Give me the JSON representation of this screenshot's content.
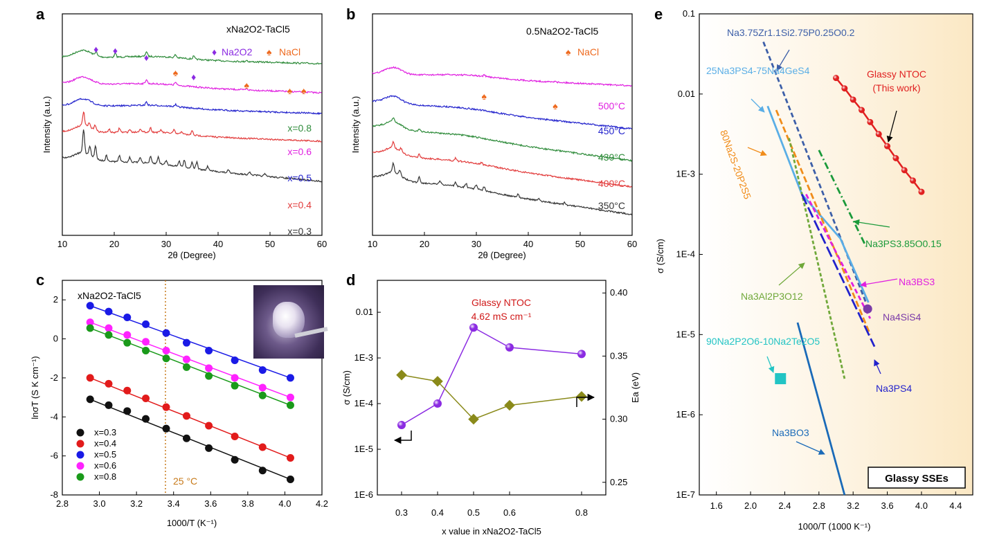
{
  "panels": {
    "a": "a",
    "b": "b",
    "c": "c",
    "d": "d",
    "e": "e"
  },
  "chart_data": [
    {
      "id": "a",
      "type": "line",
      "xlabel": "2θ (Degree)",
      "ylabel": "Intensity (a.u.)",
      "xlim": [
        10,
        60
      ],
      "xticks": [
        "10",
        "20",
        "30",
        "40",
        "50",
        "60"
      ],
      "title": "xNa2O2-TaCl5",
      "legend": [
        {
          "name": "Na2O2",
          "color": "#8b2be2"
        },
        {
          "name": "NaCl",
          "color": "#ee6a1f"
        }
      ],
      "series": [
        {
          "name": "x=0.8",
          "color": "#2e8b3a"
        },
        {
          "name": "x=0.6",
          "color": "#e020e0"
        },
        {
          "name": "x=0.5",
          "color": "#2222cc"
        },
        {
          "name": "x=0.4",
          "color": "#e23b3b"
        },
        {
          "name": "x=0.3",
          "color": "#333333"
        }
      ],
      "markers_na2o2": [
        16.5,
        20.2,
        26.2,
        35.3
      ],
      "markers_nacl": [
        31.8,
        45.5,
        53.8,
        56.5
      ]
    },
    {
      "id": "b",
      "type": "line",
      "xlabel": "2θ (Degree)",
      "ylabel": "Intensity (a.u.)",
      "xlim": [
        10,
        60
      ],
      "xticks": [
        "10",
        "20",
        "30",
        "40",
        "50",
        "60"
      ],
      "title": "0.5Na2O2-TaCl5",
      "legend": [
        {
          "name": "NaCl",
          "color": "#ee6a1f"
        }
      ],
      "series": [
        {
          "name": "500°C",
          "color": "#e020e0"
        },
        {
          "name": "450°C",
          "color": "#2222cc"
        },
        {
          "name": "430°C",
          "color": "#2e8b3a"
        },
        {
          "name": "400°C",
          "color": "#e23b3b"
        },
        {
          "name": "350°C",
          "color": "#333333"
        }
      ],
      "markers_nacl": [
        31.5,
        45.2
      ]
    },
    {
      "id": "c",
      "type": "scatter",
      "xlabel": "1000/T (K⁻¹)",
      "ylabel": "lnσT (S K cm⁻¹)",
      "xlim": [
        2.8,
        4.2
      ],
      "ylim": [
        -8,
        3
      ],
      "xticks": [
        "2.8",
        "3.0",
        "3.2",
        "3.4",
        "3.6",
        "3.8",
        "4.0",
        "4.2"
      ],
      "yticks": [
        "-8",
        "-6",
        "-4",
        "-2",
        "0",
        "2"
      ],
      "title": "xNa2O2-TaCl5",
      "annotation": "25 °C",
      "vline_x": 3.356,
      "x": [
        2.95,
        3.05,
        3.15,
        3.25,
        3.36,
        3.47,
        3.59,
        3.73,
        3.88,
        4.03
      ],
      "series": [
        {
          "name": "x=0.3",
          "color": "#111111",
          "y": [
            -3.1,
            -3.4,
            -3.7,
            -4.1,
            -4.6,
            -5.1,
            -5.6,
            -6.2,
            -6.75,
            -7.2
          ]
        },
        {
          "name": "x=0.4",
          "color": "#e21b1b",
          "y": [
            -2.0,
            -2.3,
            -2.65,
            -3.05,
            -3.5,
            -3.95,
            -4.45,
            -5.0,
            -5.55,
            -6.1
          ]
        },
        {
          "name": "x=0.5",
          "color": "#1a1ae6",
          "y": [
            1.7,
            1.4,
            1.1,
            0.75,
            0.3,
            -0.2,
            -0.6,
            -1.1,
            -1.6,
            -2.0
          ]
        },
        {
          "name": "x=0.6",
          "color": "#ff22ff",
          "y": [
            0.85,
            0.55,
            0.2,
            -0.15,
            -0.6,
            -1.05,
            -1.5,
            -2.0,
            -2.5,
            -3.0
          ]
        },
        {
          "name": "x=0.8",
          "color": "#1a9a1a",
          "y": [
            0.55,
            0.2,
            -0.2,
            -0.6,
            -1.0,
            -1.45,
            -1.9,
            -2.4,
            -2.9,
            -3.4
          ]
        }
      ]
    },
    {
      "id": "d",
      "type": "line",
      "xlabel": "x value in xNa2O2-TaCl5",
      "ylabel": "σ (S/cm)",
      "ylabel_right": "Ea (eV)",
      "xticks": [
        "0.3",
        "0.4",
        "0.5",
        "0.6",
        "0.8"
      ],
      "x": [
        0.3,
        0.4,
        0.5,
        0.6,
        0.8
      ],
      "yticks_left": [
        "1E-6",
        "1E-5",
        "1E-4",
        "1E-3",
        "0.01"
      ],
      "yticks_right": [
        "0.25",
        "0.30",
        "0.35",
        "0.40"
      ],
      "ylim_left": [
        1e-06,
        0.05
      ],
      "ylim_right": [
        0.24,
        0.41
      ],
      "annotation": [
        "Glassy NTOC",
        "4.62 mS cm⁻¹"
      ],
      "series": [
        {
          "name": "σ",
          "color": "#8b2be2",
          "axis": "left",
          "y": [
            3.4e-05,
            0.0001,
            0.00462,
            0.0017,
            0.00122
          ]
        },
        {
          "name": "Ea",
          "color": "#8a8a1a",
          "axis": "right",
          "y": [
            0.335,
            0.33,
            0.3,
            0.311,
            0.318
          ]
        }
      ]
    },
    {
      "id": "e",
      "type": "line",
      "xlabel": "1000/T (1000 K⁻¹)",
      "ylabel": "σ (S/cm)",
      "xlim": [
        1.4,
        4.6
      ],
      "ylim_log": [
        -7,
        -1
      ],
      "xticks": [
        "1.6",
        "2.0",
        "2.4",
        "2.8",
        "3.2",
        "3.6",
        "4.0",
        "4.4"
      ],
      "yticks": [
        "1E-7",
        "1E-6",
        "1E-5",
        "1E-4",
        "1E-3",
        "0.01",
        "0.1"
      ],
      "legend_box": "Glassy SSEs",
      "series": [
        {
          "name": "Glassy NTOC (This work)",
          "label": [
            "Glassy NTOC",
            "(This work)"
          ],
          "color": "#e02020",
          "x": [
            3.0,
            3.1,
            3.2,
            3.3,
            3.4,
            3.5,
            3.6,
            3.7,
            3.8,
            3.9,
            4.0
          ],
          "y": [
            -1.8,
            -1.93,
            -2.07,
            -2.2,
            -2.35,
            -2.5,
            -2.65,
            -2.8,
            -2.95,
            -3.08,
            -3.22
          ]
        },
        {
          "name": "Na3.75Zr1.1Si2.75P0.25O0.2",
          "color": "#3d5fa8",
          "x": [
            2.15,
            3.35
          ],
          "y": [
            -1.35,
            -4.6
          ]
        },
        {
          "name": "25Na3PS4-75Na4GeS4",
          "color": "#5aaee6",
          "x": [
            2.2,
            2.6,
            3.05,
            3.38
          ],
          "y": [
            -2.15,
            -3.25,
            -3.8,
            -4.6
          ]
        },
        {
          "name": "80Na2S-20P2S5",
          "color": "#f08c1a",
          "x": [
            2.3,
            3.4
          ],
          "y": [
            -2.2,
            -5.0
          ]
        },
        {
          "name": "Na3PS3.85O0.15",
          "color": "#1a9a3a",
          "x": [
            2.8,
            3.35
          ],
          "y": [
            -2.7,
            -3.9
          ]
        },
        {
          "name": "Na3Al2P3O12",
          "color": "#70a83a",
          "x": [
            2.45,
            3.1
          ],
          "y": [
            -2.55,
            -5.55
          ]
        },
        {
          "name": "Na3BS3",
          "color": "#e020e0",
          "x": [
            2.65,
            3.4
          ],
          "y": [
            -3.25,
            -4.8
          ]
        },
        {
          "name": "Na3PS4",
          "color": "#2222cc",
          "x": [
            2.6,
            3.45
          ],
          "y": [
            -3.25,
            -5.15
          ]
        },
        {
          "name": "Na3BO3",
          "color": "#1a6ab8",
          "x": [
            2.55,
            3.1
          ],
          "y": [
            -4.85,
            -7.0
          ]
        }
      ],
      "points": [
        {
          "name": "Na4SiS4",
          "color": "#7a3aa8",
          "x": 3.37,
          "y": -4.68
        },
        {
          "name": "90Na2P2O6-10Na2Te2O5",
          "color": "#22c4c4",
          "x": 2.35,
          "y": -5.55
        }
      ]
    }
  ]
}
